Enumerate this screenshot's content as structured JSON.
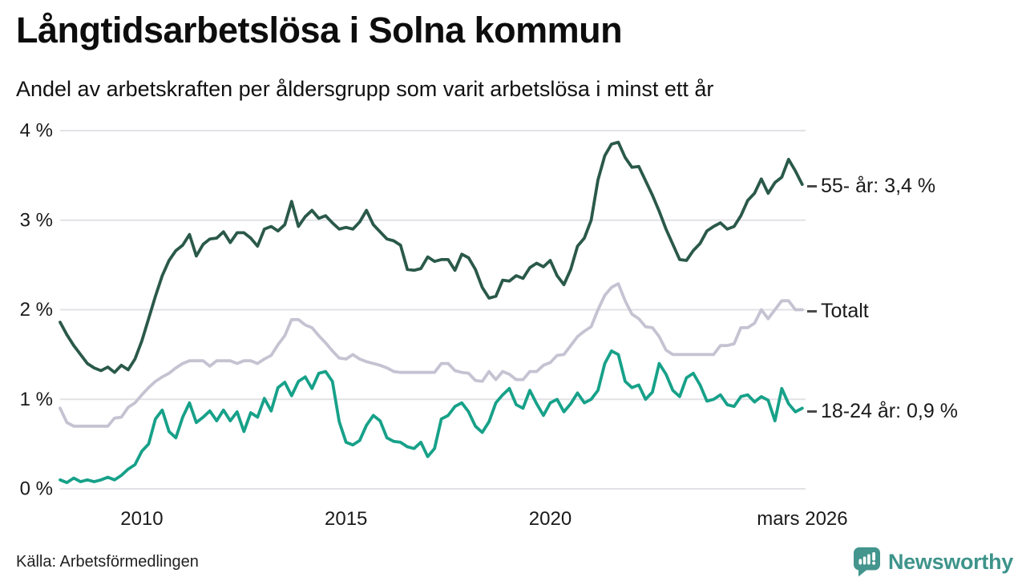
{
  "header": {
    "title": "Långtidsarbetslösa i Solna kommun",
    "subtitle": "Andel av arbetskraften per åldersgrupp som varit arbetslösa i minst ett år"
  },
  "source": {
    "label": "Källa: Arbetsförmedlingen"
  },
  "branding": {
    "wordmark": "Newsworthy",
    "brand_color": "#3e948b"
  },
  "chart_data": {
    "type": "line",
    "title": "Långtidsarbetslösa i Solna kommun",
    "subtitle": "Andel av arbetskraften per åldersgrupp som varit arbetslösa i minst ett år",
    "unit": "% av arbetskraften",
    "grid": "horizontal",
    "legend_position": "right-edge-annotations",
    "xlim": [
      2008,
      2026.25
    ],
    "ylim": [
      0,
      4
    ],
    "x_start": 2008.0,
    "x_step_years": 0.166667,
    "x_ticks": [
      {
        "value": 2010,
        "label": "2010"
      },
      {
        "value": 2015,
        "label": "2015"
      },
      {
        "value": 2020,
        "label": "2020"
      },
      {
        "value": 2026.17,
        "label": "mars 2026"
      }
    ],
    "y_ticks": [
      {
        "value": 0,
        "label": "0 %"
      },
      {
        "value": 1,
        "label": "1 %"
      },
      {
        "value": 2,
        "label": "2 %"
      },
      {
        "value": 3,
        "label": "3 %"
      },
      {
        "value": 4,
        "label": "4 %"
      }
    ],
    "gridline_color": "#e2e2e6",
    "series": [
      {
        "name": "55- år",
        "label": "55- år: 3,4 %",
        "last_value": 3.4,
        "color": "#2a594a",
        "values": [
          1.86,
          1.72,
          1.6,
          1.5,
          1.4,
          1.35,
          1.32,
          1.36,
          1.3,
          1.38,
          1.33,
          1.45,
          1.65,
          1.9,
          2.15,
          2.38,
          2.55,
          2.66,
          2.72,
          2.84,
          2.6,
          2.73,
          2.79,
          2.8,
          2.87,
          2.75,
          2.86,
          2.86,
          2.8,
          2.71,
          2.9,
          2.93,
          2.88,
          2.95,
          3.21,
          2.93,
          3.04,
          3.11,
          3.02,
          3.05,
          2.97,
          2.9,
          2.92,
          2.9,
          2.98,
          3.11,
          2.95,
          2.87,
          2.79,
          2.77,
          2.72,
          2.45,
          2.44,
          2.46,
          2.59,
          2.54,
          2.56,
          2.56,
          2.44,
          2.62,
          2.58,
          2.45,
          2.25,
          2.13,
          2.15,
          2.33,
          2.32,
          2.38,
          2.35,
          2.47,
          2.52,
          2.48,
          2.55,
          2.38,
          2.28,
          2.45,
          2.71,
          2.8,
          3.0,
          3.45,
          3.72,
          3.85,
          3.87,
          3.7,
          3.59,
          3.6,
          3.44,
          3.28,
          3.1,
          2.9,
          2.73,
          2.56,
          2.55,
          2.66,
          2.74,
          2.88,
          2.93,
          2.97,
          2.9,
          2.93,
          3.05,
          3.22,
          3.3,
          3.46,
          3.3,
          3.42,
          3.48,
          3.68,
          3.55,
          3.4
        ]
      },
      {
        "name": "Totalt",
        "label": "Totalt",
        "last_value": 2.0,
        "color": "#c5c3d2",
        "values": [
          0.9,
          0.74,
          0.7,
          0.7,
          0.7,
          0.7,
          0.7,
          0.7,
          0.79,
          0.8,
          0.91,
          0.96,
          1.05,
          1.13,
          1.2,
          1.25,
          1.29,
          1.35,
          1.4,
          1.43,
          1.43,
          1.43,
          1.37,
          1.43,
          1.43,
          1.43,
          1.4,
          1.43,
          1.43,
          1.4,
          1.45,
          1.49,
          1.61,
          1.71,
          1.89,
          1.89,
          1.83,
          1.8,
          1.71,
          1.63,
          1.54,
          1.46,
          1.45,
          1.5,
          1.45,
          1.42,
          1.4,
          1.38,
          1.35,
          1.31,
          1.3,
          1.3,
          1.3,
          1.3,
          1.3,
          1.3,
          1.4,
          1.4,
          1.32,
          1.3,
          1.29,
          1.21,
          1.2,
          1.31,
          1.22,
          1.31,
          1.28,
          1.22,
          1.22,
          1.31,
          1.31,
          1.38,
          1.41,
          1.49,
          1.5,
          1.6,
          1.7,
          1.76,
          1.81,
          2.0,
          2.16,
          2.25,
          2.29,
          2.1,
          1.95,
          1.9,
          1.81,
          1.8,
          1.7,
          1.55,
          1.5,
          1.5,
          1.5,
          1.5,
          1.5,
          1.5,
          1.5,
          1.6,
          1.6,
          1.62,
          1.8,
          1.8,
          1.85,
          2.0,
          1.9,
          2.0,
          2.1,
          2.1,
          2.0,
          2.0
        ]
      },
      {
        "name": "18-24 år",
        "label": "18-24 år: 0,9 %",
        "last_value": 0.9,
        "color": "#17a189",
        "values": [
          0.1,
          0.07,
          0.12,
          0.08,
          0.1,
          0.08,
          0.1,
          0.13,
          0.1,
          0.15,
          0.22,
          0.27,
          0.42,
          0.5,
          0.78,
          0.88,
          0.64,
          0.57,
          0.8,
          0.96,
          0.74,
          0.8,
          0.87,
          0.76,
          0.88,
          0.76,
          0.86,
          0.64,
          0.85,
          0.8,
          1.01,
          0.87,
          1.13,
          1.19,
          1.04,
          1.2,
          1.25,
          1.12,
          1.29,
          1.31,
          1.2,
          0.75,
          0.52,
          0.49,
          0.54,
          0.71,
          0.82,
          0.76,
          0.57,
          0.53,
          0.52,
          0.47,
          0.45,
          0.52,
          0.36,
          0.45,
          0.78,
          0.82,
          0.92,
          0.96,
          0.86,
          0.7,
          0.63,
          0.75,
          0.96,
          1.05,
          1.12,
          0.94,
          0.9,
          1.1,
          0.95,
          0.82,
          0.96,
          1.0,
          0.86,
          0.95,
          1.07,
          0.96,
          1.0,
          1.1,
          1.4,
          1.54,
          1.5,
          1.2,
          1.13,
          1.16,
          1.0,
          1.08,
          1.4,
          1.28,
          1.1,
          1.03,
          1.24,
          1.29,
          1.16,
          0.98,
          1.0,
          1.05,
          0.94,
          0.92,
          1.03,
          1.05,
          0.97,
          1.03,
          0.99,
          0.76,
          1.12,
          0.95,
          0.86,
          0.9
        ]
      }
    ]
  }
}
